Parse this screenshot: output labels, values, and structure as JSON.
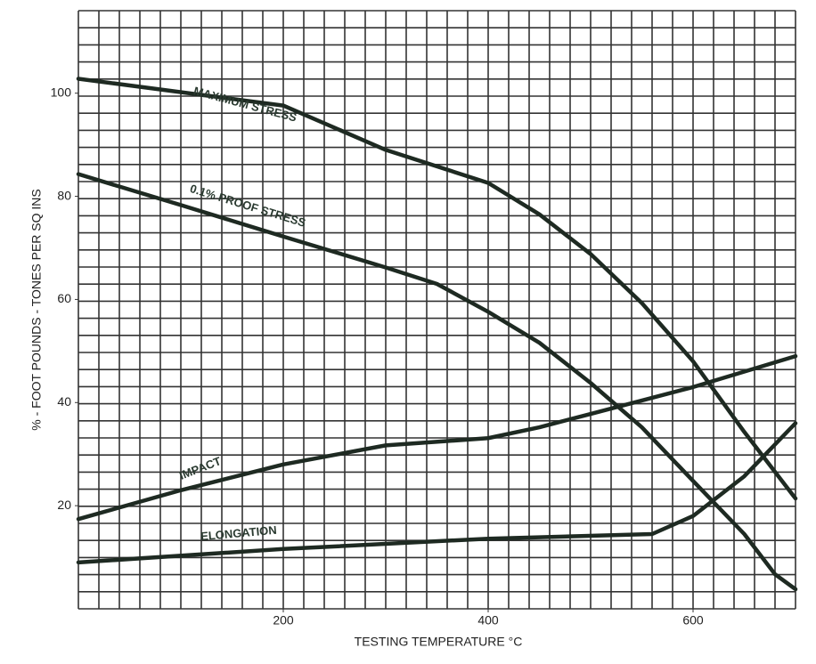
{
  "chart_data": {
    "type": "line",
    "xlabel": "TESTING TEMPERATURE °C",
    "ylabel": "% - FOOT POUNDS - TONES PER SQ INS",
    "xlim": [
      0,
      700
    ],
    "ylim": [
      0,
      116
    ],
    "xticks": [
      200,
      400,
      600
    ],
    "yticks": [
      20,
      40,
      60,
      80,
      100
    ],
    "grid": true,
    "grid_divisions": [
      35,
      35
    ],
    "series": [
      {
        "name": "MAXIMUM STRESS",
        "color": "#1e2a22",
        "x": [
          0,
          200,
          300,
          400,
          450,
          500,
          550,
          600,
          650,
          700
        ],
        "values": [
          102.8,
          97.6,
          89,
          82.6,
          76.5,
          68.8,
          59.3,
          48,
          34.3,
          21.4
        ]
      },
      {
        "name": "0.1% PROOF STRESS",
        "color": "#1e2a22",
        "x": [
          0,
          100,
          200,
          300,
          350,
          400,
          450,
          500,
          550,
          600,
          650,
          680,
          700
        ],
        "values": [
          84.3,
          78.3,
          72.2,
          66.2,
          63,
          57.6,
          51.6,
          43.8,
          35.2,
          24.8,
          14.5,
          6.7,
          3.8
        ]
      },
      {
        "name": "IMPACT",
        "color": "#1e2a22",
        "x": [
          0,
          100,
          200,
          300,
          400,
          450,
          500,
          600,
          700
        ],
        "values": [
          17.4,
          23,
          28,
          31.7,
          33.1,
          35.2,
          37.8,
          43,
          49
        ]
      },
      {
        "name": "ELONGATION",
        "color": "#1e2a22",
        "x": [
          0,
          200,
          400,
          560,
          600,
          650,
          700
        ],
        "values": [
          9,
          11.6,
          13.6,
          14.5,
          18,
          25.7,
          36
        ]
      }
    ]
  }
}
